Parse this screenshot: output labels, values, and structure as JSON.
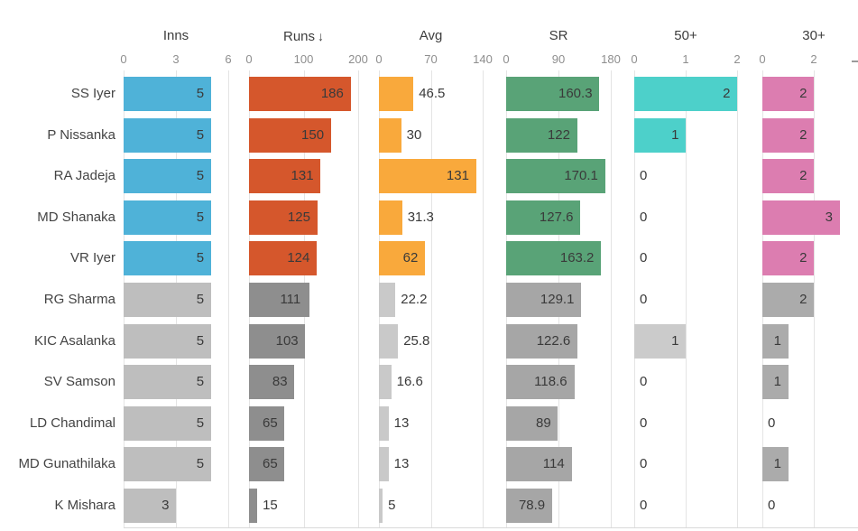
{
  "chart_data": {
    "type": "bar",
    "orientation": "horizontal",
    "sorted_by": "Runs",
    "sort_direction": "desc",
    "highlight_count": 5,
    "grid": true,
    "players": [
      "SS Iyer",
      "P Nissanka",
      "RA Jadeja",
      "MD Shanaka",
      "VR Iyer",
      "RG Sharma",
      "KIC Asalanka",
      "SV Samson",
      "LD Chandimal",
      "MD Gunathilaka",
      "K Mishara"
    ],
    "columns": [
      {
        "key": "inns",
        "label": "Inns",
        "sort_indicator": "",
        "axis_min": 0,
        "axis_max": 6,
        "ticks": [
          {
            "v": 0,
            "label": "0"
          },
          {
            "v": 3,
            "label": "3"
          },
          {
            "v": 6,
            "label": "6"
          }
        ],
        "color": "#4fb2d8",
        "muted_color": "#bebebe",
        "values": [
          5,
          5,
          5,
          5,
          5,
          5,
          5,
          5,
          5,
          5,
          3
        ],
        "value_labels": [
          "5",
          "5",
          "5",
          "5",
          "5",
          "5",
          "5",
          "5",
          "5",
          "5",
          "3"
        ]
      },
      {
        "key": "runs",
        "label": "Runs",
        "sort_indicator": "↓",
        "axis_min": 0,
        "axis_max": 200,
        "ticks": [
          {
            "v": 0,
            "label": "0"
          },
          {
            "v": 100,
            "label": "100"
          },
          {
            "v": 200,
            "label": "200"
          }
        ],
        "color": "#d5572c",
        "muted_color": "#8e8e8e",
        "values": [
          186,
          150,
          131,
          125,
          124,
          111,
          103,
          83,
          65,
          65,
          15
        ],
        "value_labels": [
          "186",
          "150",
          "131",
          "125",
          "124",
          "111",
          "103",
          "83",
          "65",
          "65",
          "15"
        ]
      },
      {
        "key": "avg",
        "label": "Avg",
        "sort_indicator": "",
        "axis_min": 0,
        "axis_max": 140,
        "ticks": [
          {
            "v": 0,
            "label": "0"
          },
          {
            "v": 70,
            "label": "70"
          },
          {
            "v": 140,
            "label": "140"
          }
        ],
        "color": "#f9a93c",
        "muted_color": "#c9c9c9",
        "values": [
          46.5,
          30,
          131,
          31.3,
          62,
          22.2,
          25.8,
          16.6,
          13,
          13,
          5
        ],
        "value_labels": [
          "46.5",
          "30",
          "131",
          "31.3",
          "62",
          "22.2",
          "25.8",
          "16.6",
          "13",
          "13",
          "5"
        ]
      },
      {
        "key": "sr",
        "label": "SR",
        "sort_indicator": "",
        "axis_min": 0,
        "axis_max": 180,
        "ticks": [
          {
            "v": 0,
            "label": "0"
          },
          {
            "v": 90,
            "label": "90"
          },
          {
            "v": 180,
            "label": "180"
          }
        ],
        "color": "#59a377",
        "muted_color": "#a6a6a6",
        "values": [
          160.3,
          122,
          170.1,
          127.6,
          163.2,
          129.1,
          122.6,
          118.6,
          89,
          114,
          78.9
        ],
        "value_labels": [
          "160.3",
          "122",
          "170.1",
          "127.6",
          "163.2",
          "129.1",
          "122.6",
          "118.6",
          "89",
          "114",
          "78.9"
        ]
      },
      {
        "key": "fifty-plus",
        "label": "50+",
        "sort_indicator": "",
        "axis_min": 0,
        "axis_max": 2,
        "ticks": [
          {
            "v": 0,
            "label": "0"
          },
          {
            "v": 1,
            "label": "1"
          },
          {
            "v": 2,
            "label": "2"
          }
        ],
        "color": "#4dd0ca",
        "muted_color": "#cbcbcb",
        "values": [
          2,
          1,
          0,
          0,
          0,
          0,
          1,
          0,
          0,
          0,
          0
        ],
        "value_labels": [
          "2",
          "1",
          "0",
          "0",
          "0",
          "0",
          "1",
          "0",
          "0",
          "0",
          "0"
        ]
      },
      {
        "key": "thirty-plus",
        "label": "30+",
        "sort_indicator": "",
        "axis_min": 0,
        "axis_max": 4,
        "clipped_right": true,
        "ticks": [
          {
            "v": 0,
            "label": "0"
          },
          {
            "v": 2,
            "label": "2"
          }
        ],
        "color": "#dc7db0",
        "muted_color": "#ababab",
        "values": [
          2,
          2,
          2,
          3,
          2,
          2,
          1,
          1,
          0,
          1,
          0
        ],
        "value_labels": [
          "2",
          "2",
          "2",
          "3",
          "2",
          "2",
          "1",
          "1",
          "0",
          "1",
          "0"
        ]
      }
    ]
  }
}
